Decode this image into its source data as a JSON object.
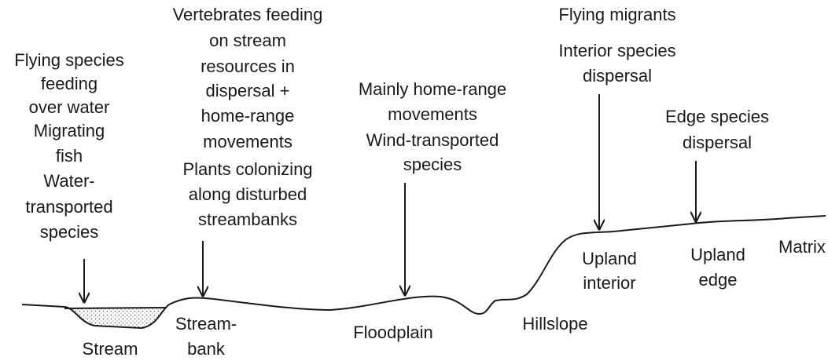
{
  "annotations": [
    {
      "lines": [
        "Flying species",
        "feeding",
        "over water",
        "Migrating",
        "fish",
        "Water-",
        "transported",
        "species"
      ]
    },
    {
      "lines": [
        "Vertebrates feeding",
        "on stream",
        "resources in",
        "dispersal +",
        "home-range",
        "movements",
        "Plants colonizing",
        "along disturbed",
        "streambanks"
      ]
    },
    {
      "lines": [
        "Mainly home-range",
        "movements",
        "Wind-transported",
        "species"
      ]
    },
    {
      "lines": [
        "Flying migrants",
        "Interior species",
        "dispersal"
      ]
    },
    {
      "lines": [
        "Edge species",
        "dispersal"
      ]
    }
  ],
  "zones": [
    {
      "lines": [
        "Stream"
      ]
    },
    {
      "lines": [
        "Stream-",
        "bank"
      ]
    },
    {
      "lines": [
        "Floodplain"
      ]
    },
    {
      "lines": [
        "Hillslope"
      ]
    },
    {
      "lines": [
        "Upland",
        "interior"
      ]
    },
    {
      "lines": [
        "Upland",
        "edge"
      ]
    },
    {
      "lines": [
        "Matrix"
      ]
    }
  ]
}
